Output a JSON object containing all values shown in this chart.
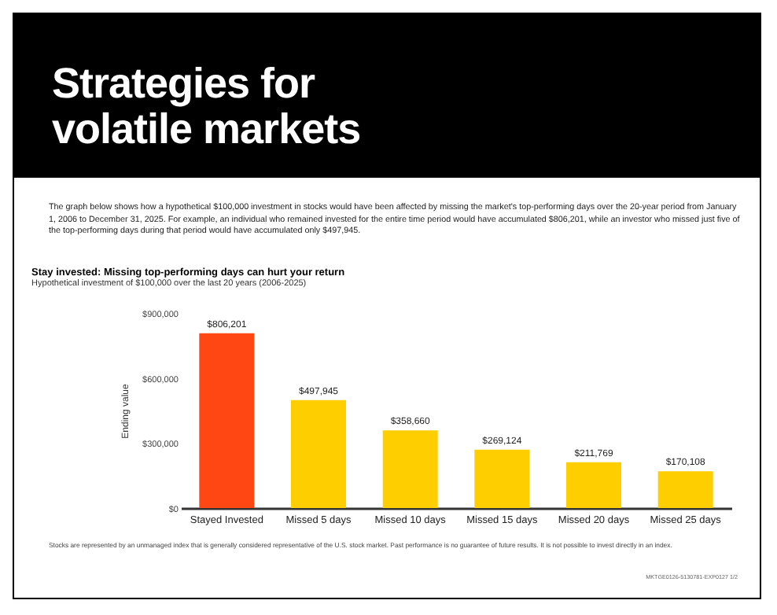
{
  "chart_data": {
    "type": "bar",
    "title": "Stay invested: Missing top-performing days can hurt your return",
    "subtitle": "Hypothetical investment of $100,000 over the last 20 years (2006-2025)",
    "ylabel": "Ending value",
    "categories": [
      "Stayed Invested",
      "Missed 5 days",
      "Missed 10 days",
      "Missed 15 days",
      "Missed 20 days",
      "Missed 25 days"
    ],
    "values": [
      806201,
      497945,
      358660,
      269124,
      211769,
      170108
    ],
    "colors": [
      "#ff4713",
      "#ffce00",
      "#ffce00",
      "#ffce00",
      "#ffce00",
      "#ffce00"
    ],
    "value_labels": [
      "$806,201",
      "$497,945",
      "$358,660",
      "$269,124",
      "$211,769",
      "$170,108"
    ],
    "ylim": [
      0,
      900000
    ],
    "yticks": [
      {
        "value": 0,
        "label": "$0"
      },
      {
        "value": 300000,
        "label": "$300,000"
      },
      {
        "value": 600000,
        "label": "$600,000"
      },
      {
        "value": 900000,
        "label": "$900,000"
      }
    ],
    "grid": false,
    "legend": false,
    "annotations": [
      "Strategies for volatile markets",
      "The graph below shows how a hypothetical $100,000 investment in stocks would have been affected by missing the market's top-performing days over the 20-year period from January 1, 2006 to December 31, 2025. For example, an individual who remained invested for the entire time period would have accumulated $806,201, while an investor who missed just five of the top-performing days during that period would have accumulated only $497,945.",
      "Stocks are represented by an unmanaged index that is generally considered representative of the U.S. stock market. Past performance is no guarantee of future results. It is not possible to invest directly in an index.",
      "MKTGE0126-5130781-EXP0127 1/2"
    ]
  }
}
